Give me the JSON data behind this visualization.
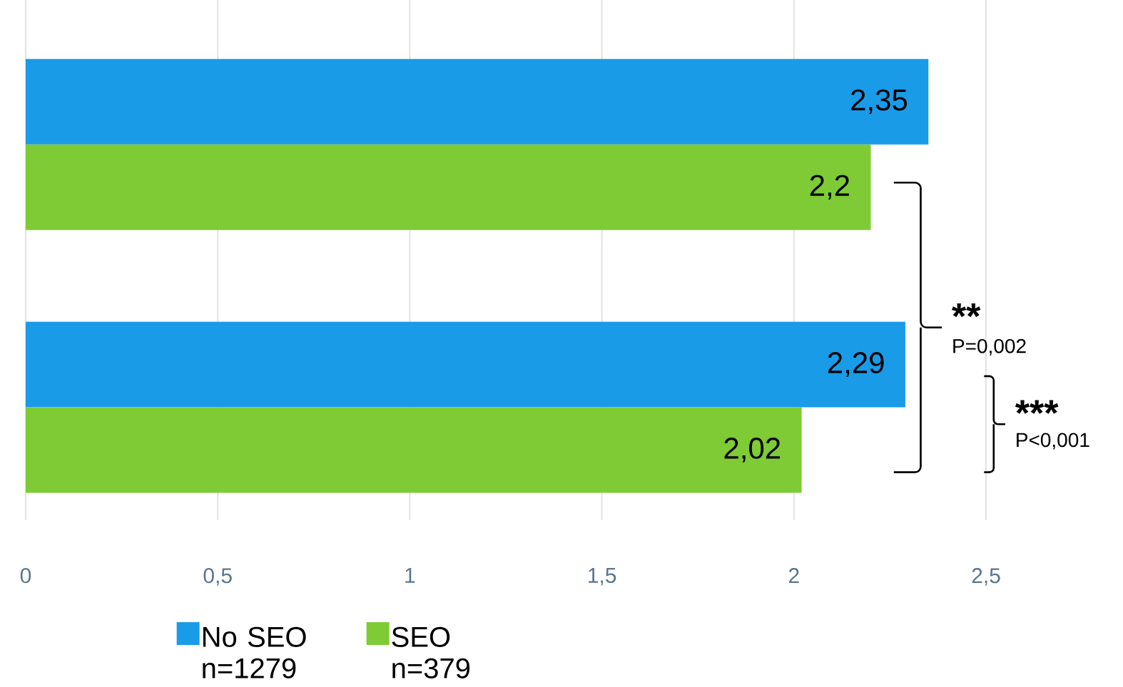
{
  "chart_data": {
    "type": "bar",
    "orientation": "horizontal",
    "categories": [
      null,
      null
    ],
    "series": [
      {
        "name": "No SEO n=1279",
        "color": "#1a9be8",
        "values": [
          2.35,
          2.29
        ],
        "value_labels": [
          "2,35",
          "2,29"
        ]
      },
      {
        "name": "SEO n=379",
        "color": "#7ecb35",
        "values": [
          2.2,
          2.02
        ],
        "value_labels": [
          "2,2",
          "2,02"
        ]
      }
    ],
    "xlim": [
      0,
      2.5
    ],
    "xticks": [
      {
        "value": 0,
        "label": "0"
      },
      {
        "value": 0.5,
        "label": "0,5"
      },
      {
        "value": 1,
        "label": "1"
      },
      {
        "value": 1.5,
        "label": "1,5"
      },
      {
        "value": 2,
        "label": "2"
      },
      {
        "value": 2.5,
        "label": "2,5"
      }
    ],
    "grid": "x",
    "legend": "bottom",
    "annotations": [
      "**",
      "P=0,002",
      "***",
      "P<0,001"
    ]
  }
}
